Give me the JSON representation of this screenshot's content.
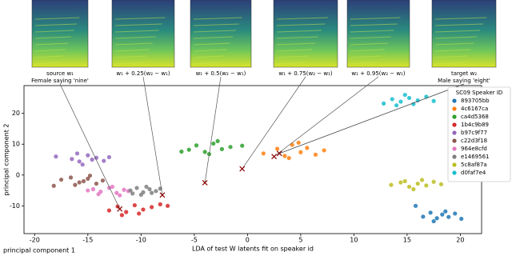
{
  "chart_data": {
    "type": "scatter",
    "xlabel": "LDA of test W latents fit on speaker id",
    "ylabel": "principal component 2",
    "corner_label": "principal component 1",
    "xlim": [
      -21,
      22
    ],
    "ylim": [
      -19,
      29
    ],
    "xticks": [
      -20,
      -15,
      -10,
      -5,
      0,
      5,
      10,
      15,
      20
    ],
    "yticks": [
      -10,
      0,
      10,
      20
    ],
    "legend_title": "SC09 Speaker ID",
    "legend": "upper right",
    "panels": [
      {
        "label": "source w₁",
        "sublabel": "Female saying 'nine'"
      },
      {
        "label": "w₁ + 0.25(w₂ − w₁)"
      },
      {
        "label": "w₁ + 0.5(w₂ − w₁)"
      },
      {
        "label": "w₁ + 0.75(w₂ − w₁)"
      },
      {
        "label": "w₁ + 0.95(w₂ − w₁)"
      },
      {
        "label": "target w₂",
        "sublabel": "Male saying 'eight'"
      }
    ],
    "interpolation_points": {
      "color": "#8b0000",
      "x": [
        -12,
        -8,
        -4,
        -0.5,
        2.5,
        3
      ],
      "y": [
        -11,
        -6.5,
        -2.5,
        2,
        6,
        7
      ]
    },
    "series": [
      {
        "name": "893705bb",
        "color": "#1f77b4",
        "x": [
          16.5,
          17.2,
          17.8,
          18.3,
          18.9,
          19.5,
          20.1,
          17.5,
          18.6,
          15.8
        ],
        "values": [
          -13.5,
          -12.2,
          -14,
          -12.8,
          -13.6,
          -12.5,
          -14.2,
          -15,
          -11.8,
          -10
        ]
      },
      {
        "name": "4c6167ca",
        "color": "#ff7f0e",
        "x": [
          1.5,
          2.8,
          3.5,
          4.2,
          5,
          5.6,
          6.4,
          3.9,
          4.8,
          7.2
        ],
        "values": [
          7,
          8.5,
          6.2,
          9.8,
          7.4,
          8.8,
          6.6,
          5.5,
          10.5,
          8
        ]
      },
      {
        "name": "ca4d5368",
        "color": "#2ca02c",
        "x": [
          -5.5,
          -4.8,
          -4,
          -3.2,
          -2.4,
          -1.6,
          -3.6,
          -2.8,
          -6.2,
          -0.5
        ],
        "values": [
          8.2,
          9.6,
          7.5,
          10.2,
          8.4,
          9.1,
          6.8,
          11,
          7.6,
          9.5
        ]
      },
      {
        "name": "1b4c9b89",
        "color": "#d62728",
        "x": [
          -13,
          -12.2,
          -11.4,
          -10.6,
          -9.8,
          -9,
          -11.8,
          -10.2,
          -8.2,
          -7.5
        ],
        "values": [
          -11.5,
          -10.2,
          -12,
          -9.8,
          -11.2,
          -10.4,
          -13,
          -12.5,
          -9.5,
          -10
        ]
      },
      {
        "name": "b97c9f77",
        "color": "#9467bd",
        "x": [
          -18,
          -16.5,
          -15.8,
          -15,
          -14.2,
          -13.5,
          -15.5,
          -14.6,
          -16,
          -13
        ],
        "values": [
          6,
          5.2,
          4.4,
          6.4,
          5.6,
          4.6,
          3.4,
          5,
          7,
          5.8
        ]
      },
      {
        "name": "c22d3f18",
        "color": "#8c564b",
        "x": [
          -17.5,
          -16.6,
          -15.8,
          -15,
          -14.2,
          -13.6,
          -16.2,
          -14.8,
          -15.4,
          -18.2
        ],
        "values": [
          -1.5,
          -0.8,
          -2.4,
          -1.2,
          -2.8,
          -1.8,
          -3.2,
          -0.2,
          -2,
          -3.5
        ]
      },
      {
        "name": "964e8cfd",
        "color": "#e377c2",
        "x": [
          -14.5,
          -13.8,
          -13,
          -12.3,
          -11.6,
          -14,
          -12.7,
          -11.2,
          -15,
          -12
        ],
        "values": [
          -4.6,
          -5.4,
          -4.2,
          -5.8,
          -4.8,
          -6.2,
          -3.8,
          -5.2,
          -5,
          -6.6
        ]
      },
      {
        "name": "e1469561",
        "color": "#7f7f7f",
        "x": [
          -11,
          -10.4,
          -9.8,
          -9.2,
          -8.6,
          -10.8,
          -9.5,
          -8.2,
          -10,
          -9
        ],
        "values": [
          -5,
          -4.2,
          -5.6,
          -4.6,
          -5.2,
          -6,
          -3.8,
          -4.4,
          -6.4,
          -5.8
        ]
      },
      {
        "name": "5c8af87a",
        "color": "#bcbd22",
        "x": [
          13.5,
          14.4,
          15.2,
          16,
          16.8,
          17.5,
          15.6,
          16.4,
          14.8,
          18.2
        ],
        "values": [
          -3.2,
          -2.4,
          -3.8,
          -2.8,
          -3.4,
          -2.2,
          -4.6,
          -1.6,
          -2,
          -3
        ]
      },
      {
        "name": "d0faf7e4",
        "color": "#17becf",
        "x": [
          12.8,
          13.6,
          14.4,
          15.2,
          16,
          16.8,
          14,
          15.6,
          14.8,
          17.5
        ],
        "values": [
          23.2,
          24.6,
          23.8,
          25,
          24.2,
          25.4,
          22.6,
          23,
          26,
          24
        ]
      }
    ]
  }
}
